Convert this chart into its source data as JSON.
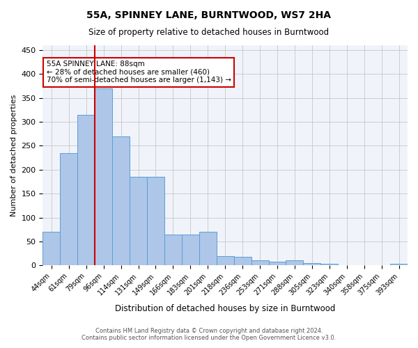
{
  "title": "55A, SPINNEY LANE, BURNTWOOD, WS7 2HA",
  "subtitle": "Size of property relative to detached houses in Burntwood",
  "xlabel": "Distribution of detached houses by size in Burntwood",
  "ylabel": "Number of detached properties",
  "categories": [
    "44sqm",
    "61sqm",
    "79sqm",
    "96sqm",
    "114sqm",
    "131sqm",
    "149sqm",
    "166sqm",
    "183sqm",
    "201sqm",
    "218sqm",
    "236sqm",
    "253sqm",
    "271sqm",
    "288sqm",
    "305sqm",
    "323sqm",
    "340sqm",
    "358sqm",
    "375sqm",
    "393sqm"
  ],
  "values": [
    70,
    235,
    315,
    370,
    270,
    185,
    185,
    65,
    65,
    70,
    20,
    18,
    10,
    7,
    10,
    5,
    3,
    1,
    1,
    1,
    3
  ],
  "bar_color": "#aec6e8",
  "bar_edge_color": "#5a9fd4",
  "vline_x": 2.5,
  "vline_color": "#cc0000",
  "annotation_text": "55A SPINNEY LANE: 88sqm\n← 28% of detached houses are smaller (460)\n70% of semi-detached houses are larger (1,143) →",
  "annotation_box_color": "#ffffff",
  "annotation_box_edge": "#cc0000",
  "ylim": [
    0,
    460
  ],
  "yticks": [
    0,
    50,
    100,
    150,
    200,
    250,
    300,
    350,
    400,
    450
  ],
  "grid_color": "#cccccc",
  "footer_line1": "Contains HM Land Registry data © Crown copyright and database right 2024.",
  "footer_line2": "Contains public sector information licensed under the Open Government Licence v3.0.",
  "bg_color": "#ffffff",
  "plot_bg_color": "#f0f4fa"
}
